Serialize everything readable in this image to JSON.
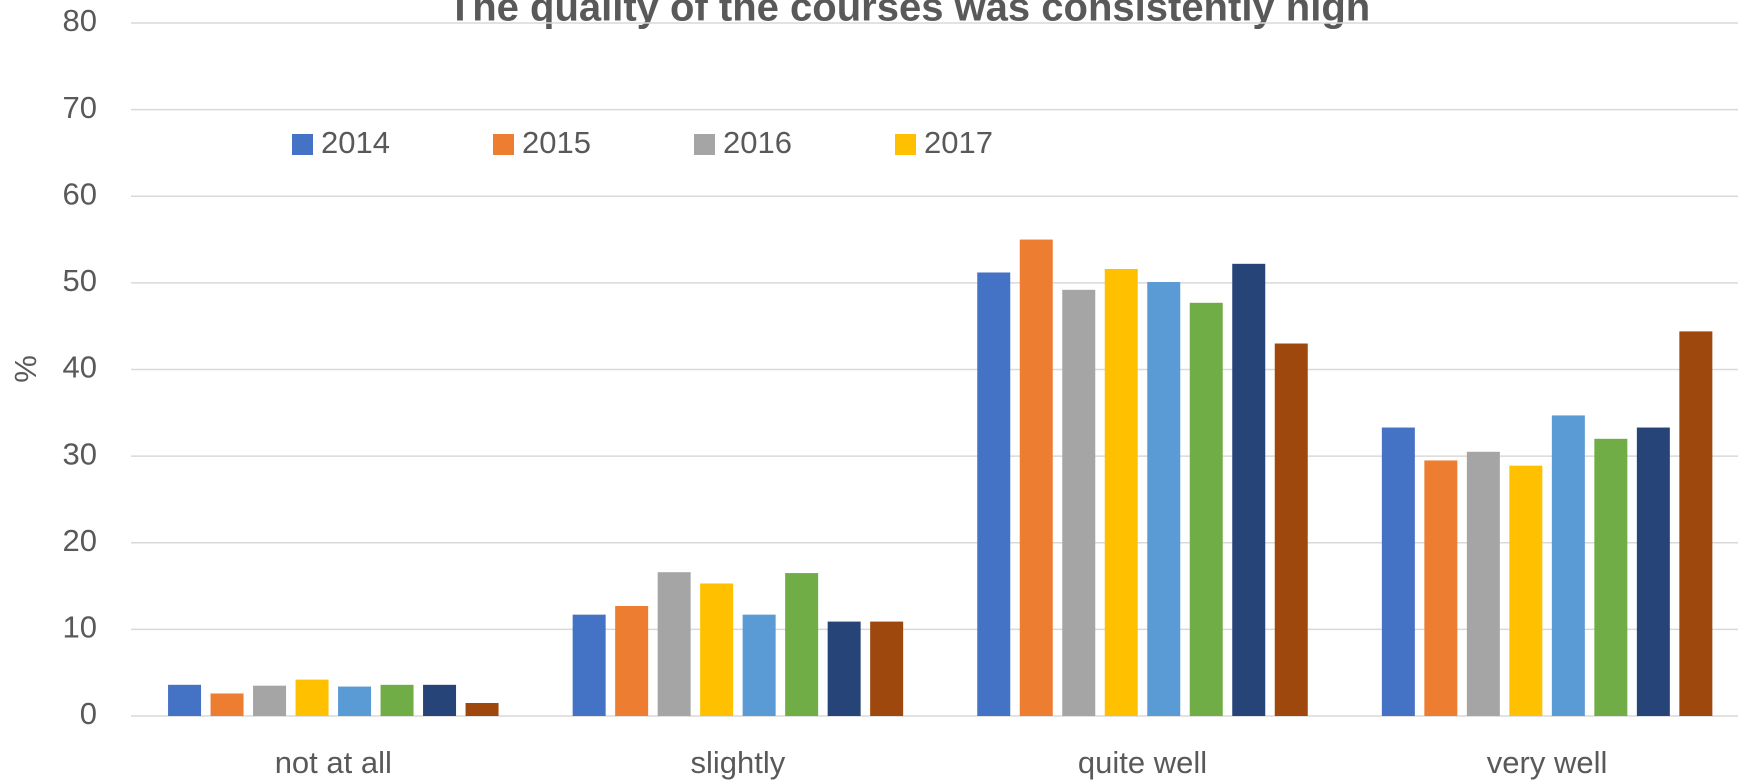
{
  "chart_data": {
    "type": "bar",
    "title": "The quality of the courses was consistently high",
    "y_label": "%",
    "categories": [
      "not at all",
      "slightly",
      "quite well",
      "very well"
    ],
    "series": [
      {
        "name": "2014",
        "color": "#4472c4",
        "values": [
          3.6,
          11.7,
          51.2,
          33.3
        ]
      },
      {
        "name": "2015",
        "color": "#ed7d31",
        "values": [
          2.6,
          12.7,
          55.0,
          29.5
        ]
      },
      {
        "name": "2016",
        "color": "#a5a5a5",
        "values": [
          3.5,
          16.6,
          49.2,
          30.5
        ]
      },
      {
        "name": "2017",
        "color": "#ffc000",
        "values": [
          4.2,
          15.3,
          51.6,
          28.9
        ]
      },
      {
        "color": "#5b9bd5",
        "values": [
          3.4,
          11.7,
          50.1,
          34.7
        ]
      },
      {
        "color": "#70ad47",
        "values": [
          3.6,
          16.5,
          47.7,
          32.0
        ]
      },
      {
        "color": "#264478",
        "values": [
          3.6,
          10.9,
          52.2,
          33.3
        ]
      },
      {
        "color": "#9e480e",
        "values": [
          1.5,
          10.9,
          43.0,
          44.4
        ]
      }
    ],
    "ylim": [
      0,
      80
    ],
    "yticks": [
      0,
      10,
      20,
      30,
      40,
      50,
      60,
      70,
      80
    ],
    "grid": true,
    "legend": "top-left"
  }
}
